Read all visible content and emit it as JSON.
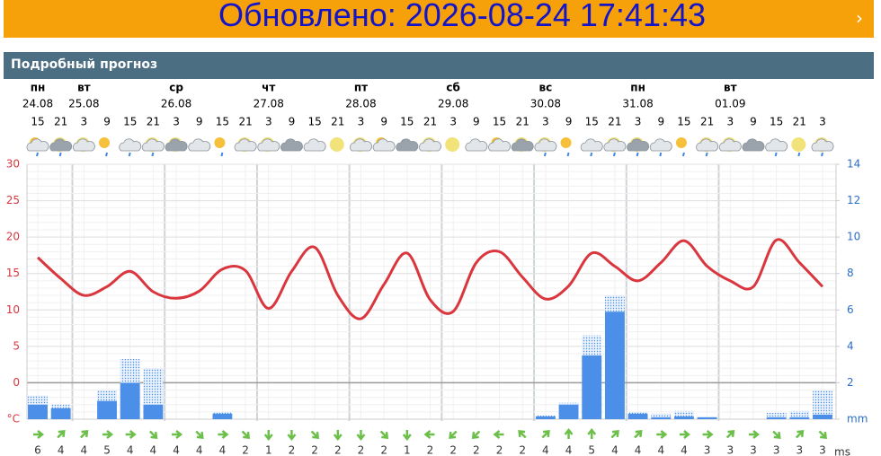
{
  "banner": {
    "title": "Обновлено: 2026-08-24 17:41:43"
  },
  "section": {
    "title": "Подробный прогноз"
  },
  "chart_data": {
    "type": "forecast",
    "days": [
      {
        "name": "пн",
        "date": "24.08"
      },
      {
        "name": "вт",
        "date": "25.08"
      },
      {
        "name": "ср",
        "date": "26.08"
      },
      {
        "name": "чт",
        "date": "27.08"
      },
      {
        "name": "пт",
        "date": "28.08"
      },
      {
        "name": "сб",
        "date": "29.08"
      },
      {
        "name": "вс",
        "date": "30.08"
      },
      {
        "name": "пн",
        "date": "31.08"
      },
      {
        "name": "вт",
        "date": "01.09"
      }
    ],
    "x": [
      15,
      21,
      3,
      9,
      15,
      21,
      3,
      9,
      15,
      21,
      3,
      9,
      15,
      21,
      3,
      9,
      15,
      21,
      3,
      9,
      15,
      21,
      3,
      9,
      15,
      21,
      3,
      9,
      15,
      21,
      3,
      9,
      15,
      21,
      3
    ],
    "temperature": {
      "color": "#d9363e",
      "values": [
        17.2,
        14.3,
        12.0,
        13.2,
        15.3,
        12.5,
        11.6,
        12.6,
        15.6,
        15.4,
        10.2,
        15.3,
        18.6,
        12.0,
        8.8,
        13.5,
        17.8,
        11.4,
        9.8,
        16.5,
        18.0,
        14.5,
        11.5,
        13.3,
        17.8,
        16.0,
        14.0,
        16.5,
        19.5,
        16.0,
        14.0,
        13.2,
        19.6,
        16.5,
        13.2
      ]
    },
    "precipitation": {
      "color": "#4b8fe8",
      "values": [
        0.8,
        0.6,
        null,
        1.0,
        2.0,
        0.8,
        null,
        null,
        0.3,
        null,
        null,
        null,
        null,
        null,
        null,
        null,
        null,
        null,
        null,
        null,
        null,
        null,
        0.15,
        0.8,
        3.5,
        5.9,
        0.3,
        0.1,
        0.15,
        0.1,
        null,
        null,
        0.1,
        0.1,
        0.25
      ],
      "max": [
        1.3,
        0.8,
        null,
        1.6,
        3.3,
        2.8,
        null,
        null,
        0.4,
        null,
        null,
        null,
        null,
        null,
        null,
        null,
        null,
        null,
        null,
        null,
        null,
        null,
        0.2,
        0.9,
        4.6,
        6.8,
        0.4,
        0.3,
        0.45,
        0.15,
        null,
        null,
        0.35,
        0.45,
        1.6
      ]
    },
    "ylim": [
      -5,
      30
    ],
    "yticks": [
      {
        "value": -5,
        "label": "°C"
      },
      0,
      5,
      10,
      15,
      20,
      25,
      30
    ],
    "y2lim": [
      0,
      14
    ],
    "y2ticks": [
      {
        "value": 0,
        "label": "mm"
      },
      2,
      4,
      6,
      8,
      10,
      12,
      14
    ],
    "wind": {
      "unit": "ms",
      "color": "#6cc04a",
      "values": [
        6,
        4,
        4,
        5,
        4,
        4,
        4,
        4,
        4,
        2,
        1,
        2,
        2,
        2,
        2,
        2,
        1,
        2,
        2,
        2,
        2,
        2,
        4,
        4,
        5,
        4,
        4,
        4,
        4,
        3,
        3,
        3,
        3,
        3,
        3
      ],
      "direction": [
        0,
        -45,
        -45,
        0,
        0,
        45,
        0,
        45,
        0,
        45,
        90,
        90,
        45,
        90,
        90,
        45,
        90,
        180,
        135,
        135,
        180,
        -135,
        -45,
        -90,
        -90,
        -45,
        -45,
        0,
        0,
        0,
        -45,
        0,
        45,
        -45,
        45
      ]
    },
    "grid": true
  }
}
